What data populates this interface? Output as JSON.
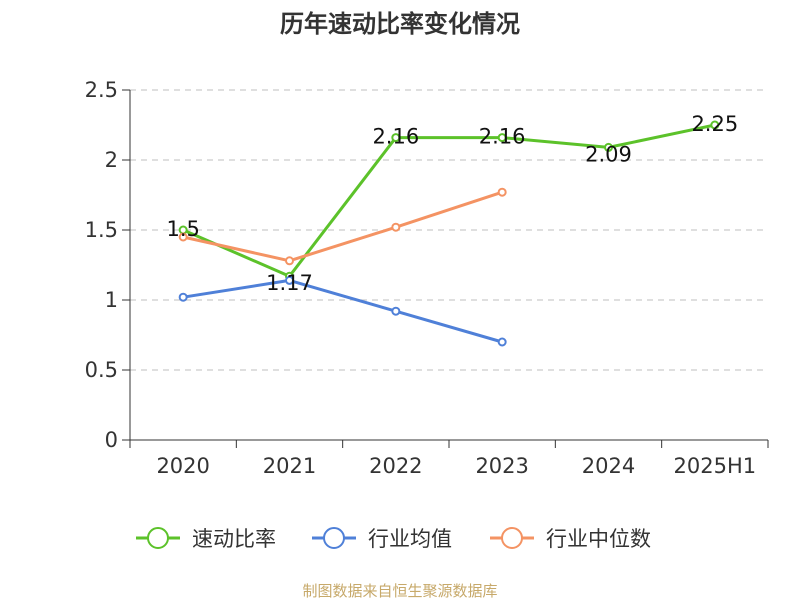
{
  "chart_data": {
    "type": "line",
    "title": "历年速动比率变化情况",
    "categories": [
      "2020",
      "2021",
      "2022",
      "2023",
      "2024",
      "2025H1"
    ],
    "ylim": [
      0,
      2.5
    ],
    "yticks": [
      "0",
      "0.5",
      "1",
      "1.5",
      "2",
      "2.5"
    ],
    "grid": true,
    "legend_position": "bottom",
    "series": [
      {
        "name": "速动比率",
        "color": "#5cc22a",
        "values": [
          1.5,
          1.17,
          2.16,
          2.16,
          2.09,
          2.25
        ],
        "labels": [
          "1.5",
          "1.17",
          "2.16",
          "2.16",
          "2.09",
          "2.25"
        ]
      },
      {
        "name": "行业均值",
        "color": "#4f80d8",
        "values": [
          1.02,
          1.14,
          0.92,
          0.7,
          null,
          null
        ]
      },
      {
        "name": "行业中位数",
        "color": "#f49363",
        "values": [
          1.45,
          1.28,
          1.52,
          1.77,
          null,
          null
        ]
      }
    ],
    "source": "制图数据来自恒生聚源数据库"
  }
}
